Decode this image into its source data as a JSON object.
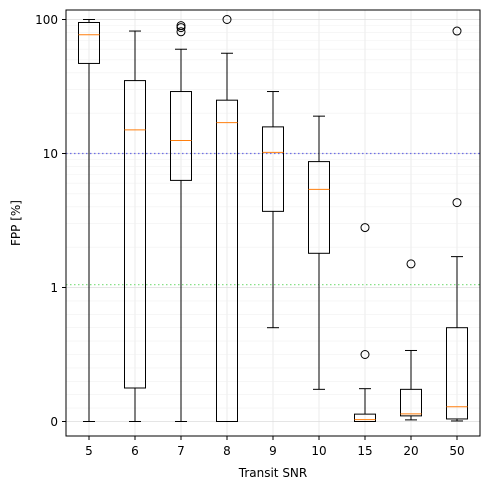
{
  "chart_data": {
    "type": "boxplot",
    "xlabel": "Transit SNR",
    "ylabel": "FPP [%]",
    "categories": [
      "5",
      "6",
      "7",
      "8",
      "9",
      "10",
      "15",
      "20",
      "50"
    ],
    "yscale": "symlog",
    "ylim": [
      -0.0007,
      100
    ],
    "yticks": [
      {
        "value": 0,
        "label": "0"
      },
      {
        "value": 1,
        "label": "1"
      },
      {
        "value": 10,
        "label": "10"
      },
      {
        "value": 100,
        "label": "100"
      }
    ],
    "grid": true,
    "reference_lines": [
      {
        "value": 10,
        "color": "#6f6fe8",
        "style": "dotted"
      },
      {
        "value": 1.05,
        "color": "#88e088",
        "style": "dotted"
      }
    ],
    "box_color": "#000000",
    "median_color": "#ff7f0e",
    "series": [
      {
        "category": "5",
        "whisker_low": 0,
        "q1": 47,
        "median": 77,
        "q3": 95,
        "whisker_high": 100,
        "outliers": []
      },
      {
        "category": "6",
        "whisker_low": 0,
        "q1": 0.25,
        "median": 15,
        "q3": 35,
        "whisker_high": 82,
        "outliers": []
      },
      {
        "category": "7",
        "whisker_low": 0,
        "q1": 6.3,
        "median": 12.5,
        "q3": 29,
        "whisker_high": 60,
        "outliers": [
          81,
          87,
          90
        ]
      },
      {
        "category": "8",
        "whisker_low": 0,
        "q1": 0,
        "median": 17,
        "q3": 25,
        "whisker_high": 56,
        "outliers": [
          100
        ]
      },
      {
        "category": "9",
        "whisker_low": 0.7,
        "q1": 3.7,
        "median": 10.2,
        "q3": 15.8,
        "whisker_high": 29,
        "outliers": []
      },
      {
        "category": "10",
        "whisker_low": 0.24,
        "q1": 1.8,
        "median": 5.4,
        "q3": 8.7,
        "whisker_high": 19,
        "outliers": []
      },
      {
        "category": "15",
        "whisker_low": 0,
        "q1": 0,
        "median": 0.014,
        "q3": 0.055,
        "whisker_high": 0.245,
        "outliers": [
          0.5,
          2.8
        ]
      },
      {
        "category": "20",
        "whisker_low": 0.012,
        "q1": 0.042,
        "median": 0.057,
        "q3": 0.24,
        "whisker_high": 0.53,
        "outliers": [
          1.5
        ]
      },
      {
        "category": "50",
        "whisker_low": 0.004,
        "q1": 0.019,
        "median": 0.11,
        "q3": 0.7,
        "whisker_high": 1.7,
        "outliers": [
          4.3,
          82
        ]
      }
    ]
  }
}
